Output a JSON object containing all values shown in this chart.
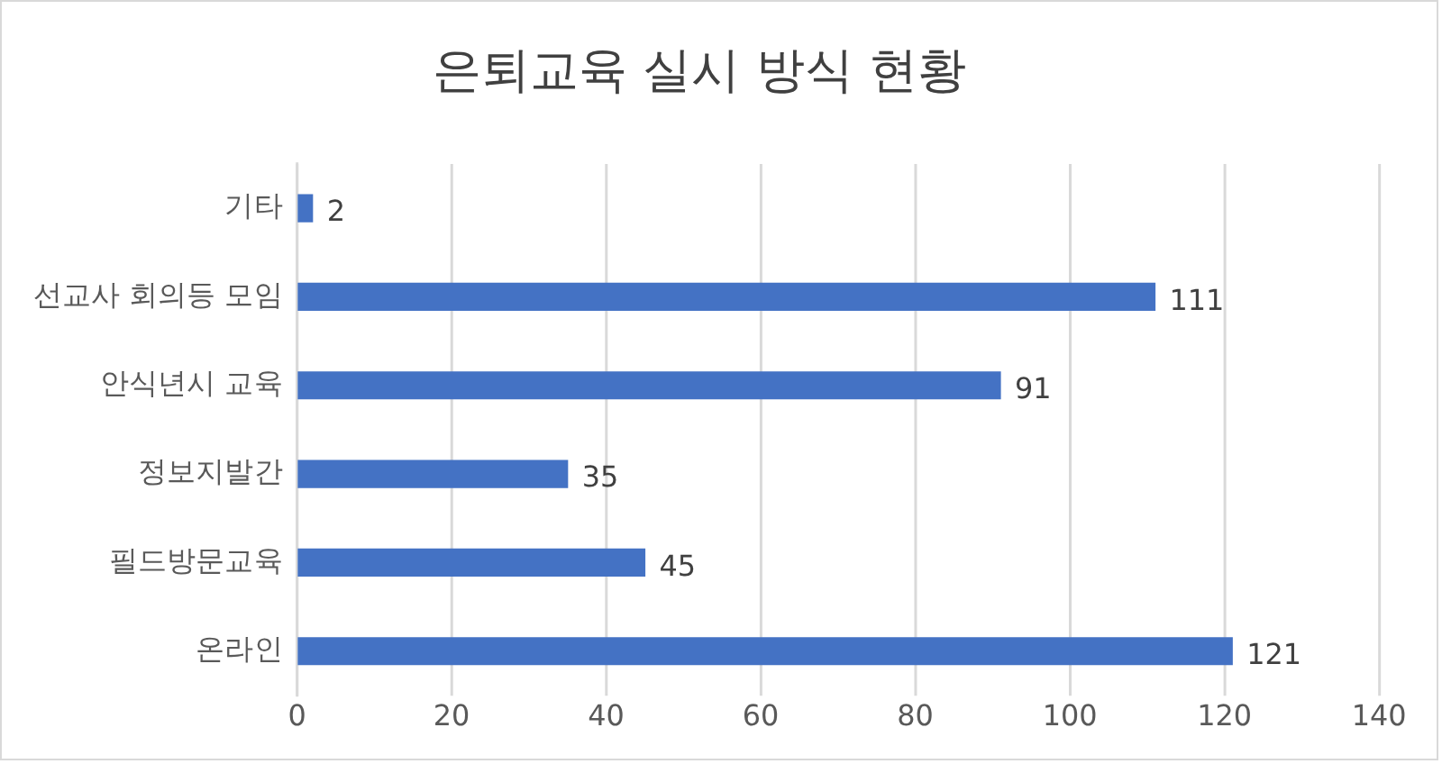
{
  "chart_data": {
    "type": "bar",
    "orientation": "horizontal",
    "title": "은퇴교육 실시 방식 현황",
    "categories": [
      "기타",
      "선교사 회의등 모임",
      "안식년시 교육",
      "정보지발간",
      "필드방문교육",
      "온라인"
    ],
    "values": [
      2,
      111,
      91,
      35,
      45,
      121
    ],
    "color": "#4472c4",
    "xlim": [
      0,
      140
    ],
    "xticks": [
      0,
      20,
      40,
      60,
      80,
      100,
      120,
      140
    ],
    "grid": "x",
    "data_labels": true,
    "legend": false
  }
}
